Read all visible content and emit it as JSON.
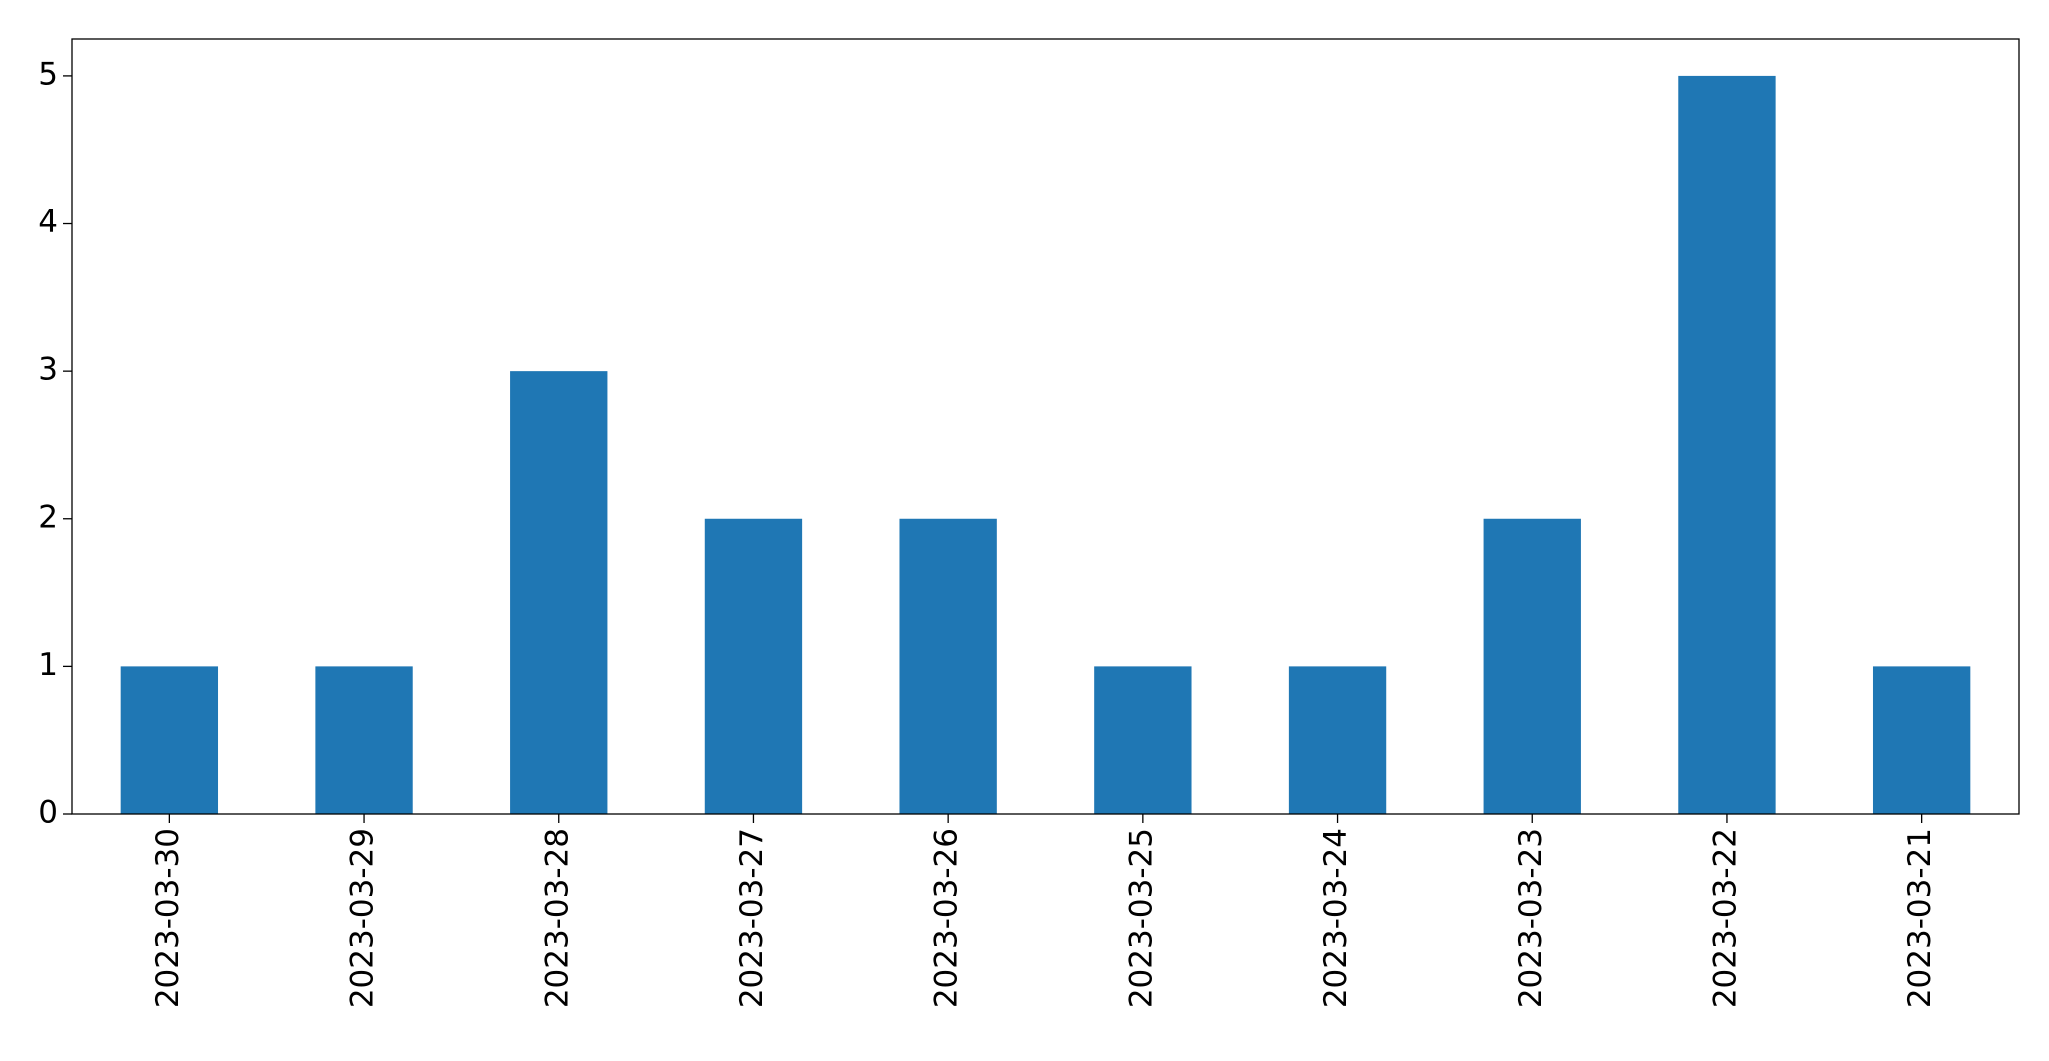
{
  "chart_data": {
    "type": "bar",
    "categories": [
      "2023-03-30",
      "2023-03-29",
      "2023-03-28",
      "2023-03-27",
      "2023-03-26",
      "2023-03-25",
      "2023-03-24",
      "2023-03-23",
      "2023-03-22",
      "2023-03-21"
    ],
    "values": [
      1,
      1,
      3,
      2,
      2,
      1,
      1,
      2,
      5,
      1
    ],
    "color": "#1f77b4",
    "ylim": [
      0,
      5.25
    ],
    "yticks": [
      0,
      1,
      2,
      3,
      4,
      5
    ],
    "grid": false
  }
}
